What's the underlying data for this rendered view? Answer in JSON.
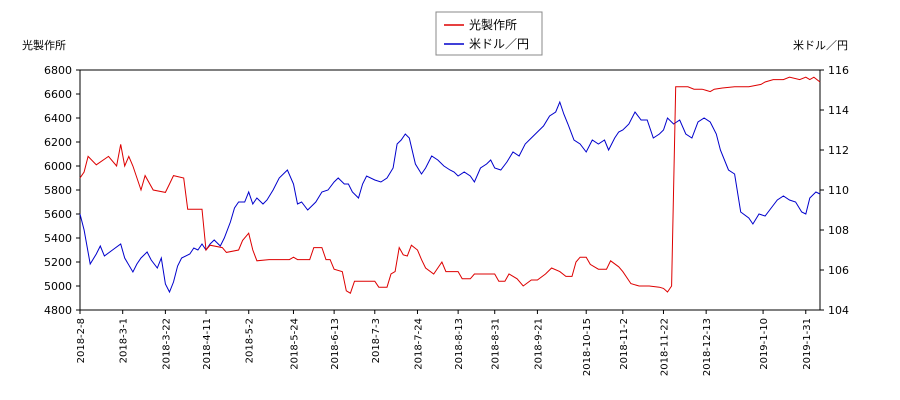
{
  "chart_data": {
    "type": "line",
    "legend": {
      "placement": "top-center",
      "entries": [
        {
          "label": "光製作所",
          "color": "#dd0000"
        },
        {
          "label": "米ドル／円",
          "color": "#0000cc"
        }
      ]
    },
    "y_left": {
      "label": "光製作所",
      "range": [
        4800,
        6800
      ],
      "ticks": [
        "4800",
        "5000",
        "5200",
        "5400",
        "5600",
        "5800",
        "6000",
        "6200",
        "6400",
        "6600",
        "6800"
      ]
    },
    "y_right": {
      "label": "米ドル／円",
      "range": [
        104,
        116
      ],
      "ticks": [
        "104",
        "106",
        "108",
        "110",
        "112",
        "114",
        "116"
      ]
    },
    "x_range": [
      "2018-02-08",
      "2019-02-07"
    ],
    "x_ticks": [
      "2018-2-8",
      "2018-3-1",
      "2018-3-22",
      "2018-4-11",
      "2018-5-2",
      "2018-5-24",
      "2018-6-13",
      "2018-7-3",
      "2018-7-24",
      "2018-8-13",
      "2018-8-31",
      "2018-9-21",
      "2018-10-15",
      "2018-11-2",
      "2018-11-22",
      "2018-12-13",
      "2019-1-10",
      "2019-1-31"
    ],
    "grid": false,
    "series": [
      {
        "name": "光製作所",
        "color": "#dd0000",
        "axis": "left",
        "points": [
          [
            "2018-02-08",
            5900
          ],
          [
            "2018-02-10",
            5950
          ],
          [
            "2018-02-12",
            6080
          ],
          [
            "2018-02-16",
            6010
          ],
          [
            "2018-02-22",
            6080
          ],
          [
            "2018-02-26",
            6000
          ],
          [
            "2018-02-28",
            6180
          ],
          [
            "2018-03-02",
            6000
          ],
          [
            "2018-03-04",
            6080
          ],
          [
            "2018-03-06",
            6000
          ],
          [
            "2018-03-10",
            5800
          ],
          [
            "2018-03-12",
            5920
          ],
          [
            "2018-03-16",
            5800
          ],
          [
            "2018-03-22",
            5780
          ],
          [
            "2018-03-24",
            5850
          ],
          [
            "2018-03-26",
            5920
          ],
          [
            "2018-03-31",
            5900
          ],
          [
            "2018-04-02",
            5640
          ],
          [
            "2018-04-09",
            5640
          ],
          [
            "2018-04-11",
            5300
          ],
          [
            "2018-04-13",
            5340
          ],
          [
            "2018-04-19",
            5320
          ],
          [
            "2018-04-21",
            5280
          ],
          [
            "2018-04-27",
            5300
          ],
          [
            "2018-04-29",
            5380
          ],
          [
            "2018-05-02",
            5440
          ],
          [
            "2018-05-04",
            5300
          ],
          [
            "2018-05-06",
            5210
          ],
          [
            "2018-05-12",
            5220
          ],
          [
            "2018-05-18",
            5220
          ],
          [
            "2018-05-22",
            5220
          ],
          [
            "2018-05-24",
            5240
          ],
          [
            "2018-05-26",
            5220
          ],
          [
            "2018-06-01",
            5220
          ],
          [
            "2018-06-03",
            5320
          ],
          [
            "2018-06-07",
            5320
          ],
          [
            "2018-06-09",
            5220
          ],
          [
            "2018-06-11",
            5220
          ],
          [
            "2018-06-13",
            5140
          ],
          [
            "2018-06-17",
            5120
          ],
          [
            "2018-06-19",
            4960
          ],
          [
            "2018-06-21",
            4940
          ],
          [
            "2018-06-23",
            5040
          ],
          [
            "2018-06-27",
            5040
          ],
          [
            "2018-07-03",
            5040
          ],
          [
            "2018-07-05",
            4990
          ],
          [
            "2018-07-09",
            4990
          ],
          [
            "2018-07-11",
            5100
          ],
          [
            "2018-07-13",
            5120
          ],
          [
            "2018-07-15",
            5320
          ],
          [
            "2018-07-17",
            5260
          ],
          [
            "2018-07-19",
            5250
          ],
          [
            "2018-07-21",
            5340
          ],
          [
            "2018-07-24",
            5300
          ],
          [
            "2018-07-26",
            5220
          ],
          [
            "2018-07-28",
            5150
          ],
          [
            "2018-08-01",
            5100
          ],
          [
            "2018-08-05",
            5200
          ],
          [
            "2018-08-07",
            5120
          ],
          [
            "2018-08-13",
            5120
          ],
          [
            "2018-08-15",
            5060
          ],
          [
            "2018-08-19",
            5060
          ],
          [
            "2018-08-21",
            5100
          ],
          [
            "2018-08-27",
            5100
          ],
          [
            "2018-08-31",
            5100
          ],
          [
            "2018-09-02",
            5040
          ],
          [
            "2018-09-05",
            5040
          ],
          [
            "2018-09-07",
            5100
          ],
          [
            "2018-09-11",
            5060
          ],
          [
            "2018-09-14",
            5000
          ],
          [
            "2018-09-18",
            5050
          ],
          [
            "2018-09-21",
            5050
          ],
          [
            "2018-09-25",
            5100
          ],
          [
            "2018-09-28",
            5150
          ],
          [
            "2018-10-02",
            5120
          ],
          [
            "2018-10-05",
            5080
          ],
          [
            "2018-10-08",
            5080
          ],
          [
            "2018-10-10",
            5200
          ],
          [
            "2018-10-12",
            5240
          ],
          [
            "2018-10-15",
            5240
          ],
          [
            "2018-10-17",
            5180
          ],
          [
            "2018-10-21",
            5140
          ],
          [
            "2018-10-25",
            5140
          ],
          [
            "2018-10-27",
            5210
          ],
          [
            "2018-10-31",
            5160
          ],
          [
            "2018-11-02",
            5120
          ],
          [
            "2018-11-06",
            5020
          ],
          [
            "2018-11-10",
            5000
          ],
          [
            "2018-11-15",
            5000
          ],
          [
            "2018-11-20",
            4990
          ],
          [
            "2018-11-22",
            4980
          ],
          [
            "2018-11-24",
            4950
          ],
          [
            "2018-11-26",
            5000
          ],
          [
            "2018-11-28",
            6660
          ],
          [
            "2018-12-04",
            6660
          ],
          [
            "2018-12-07",
            6640
          ],
          [
            "2018-12-11",
            6640
          ],
          [
            "2018-12-13",
            6630
          ],
          [
            "2018-12-15",
            6620
          ],
          [
            "2018-12-17",
            6640
          ],
          [
            "2018-12-21",
            6650
          ],
          [
            "2018-12-27",
            6660
          ],
          [
            "2019-01-03",
            6660
          ],
          [
            "2019-01-09",
            6680
          ],
          [
            "2019-01-11",
            6700
          ],
          [
            "2019-01-15",
            6720
          ],
          [
            "2019-01-20",
            6720
          ],
          [
            "2019-01-23",
            6740
          ],
          [
            "2019-01-28",
            6720
          ],
          [
            "2019-01-31",
            6740
          ],
          [
            "2019-02-02",
            6720
          ],
          [
            "2019-02-04",
            6740
          ],
          [
            "2019-02-07",
            6700
          ]
        ]
      },
      {
        "name": "米ドル／円",
        "color": "#0000cc",
        "axis": "right",
        "points": [
          [
            "2018-02-08",
            108.8
          ],
          [
            "2018-02-10",
            108.0
          ],
          [
            "2018-02-13",
            106.3
          ],
          [
            "2018-02-16",
            106.8
          ],
          [
            "2018-02-18",
            107.2
          ],
          [
            "2018-02-20",
            106.7
          ],
          [
            "2018-02-24",
            107.0
          ],
          [
            "2018-02-28",
            107.3
          ],
          [
            "2018-03-02",
            106.6
          ],
          [
            "2018-03-06",
            105.9
          ],
          [
            "2018-03-08",
            106.3
          ],
          [
            "2018-03-10",
            106.6
          ],
          [
            "2018-03-13",
            106.9
          ],
          [
            "2018-03-15",
            106.5
          ],
          [
            "2018-03-18",
            106.1
          ],
          [
            "2018-03-20",
            106.6
          ],
          [
            "2018-03-22",
            105.3
          ],
          [
            "2018-03-24",
            104.9
          ],
          [
            "2018-03-26",
            105.4
          ],
          [
            "2018-03-28",
            106.2
          ],
          [
            "2018-03-30",
            106.6
          ],
          [
            "2018-04-03",
            106.8
          ],
          [
            "2018-04-05",
            107.1
          ],
          [
            "2018-04-07",
            107.0
          ],
          [
            "2018-04-09",
            107.3
          ],
          [
            "2018-04-11",
            107.0
          ],
          [
            "2018-04-13",
            107.3
          ],
          [
            "2018-04-15",
            107.5
          ],
          [
            "2018-04-18",
            107.2
          ],
          [
            "2018-04-20",
            107.6
          ],
          [
            "2018-04-23",
            108.4
          ],
          [
            "2018-04-25",
            109.1
          ],
          [
            "2018-04-27",
            109.4
          ],
          [
            "2018-04-30",
            109.4
          ],
          [
            "2018-05-02",
            109.9
          ],
          [
            "2018-05-04",
            109.3
          ],
          [
            "2018-05-06",
            109.6
          ],
          [
            "2018-05-09",
            109.3
          ],
          [
            "2018-05-11",
            109.5
          ],
          [
            "2018-05-14",
            110.0
          ],
          [
            "2018-05-17",
            110.6
          ],
          [
            "2018-05-21",
            111.0
          ],
          [
            "2018-05-24",
            110.3
          ],
          [
            "2018-05-26",
            109.3
          ],
          [
            "2018-05-28",
            109.4
          ],
          [
            "2018-05-31",
            109.0
          ],
          [
            "2018-06-04",
            109.4
          ],
          [
            "2018-06-07",
            109.9
          ],
          [
            "2018-06-10",
            110.0
          ],
          [
            "2018-06-13",
            110.4
          ],
          [
            "2018-06-15",
            110.6
          ],
          [
            "2018-06-18",
            110.3
          ],
          [
            "2018-06-20",
            110.3
          ],
          [
            "2018-06-22",
            109.9
          ],
          [
            "2018-06-25",
            109.6
          ],
          [
            "2018-06-27",
            110.3
          ],
          [
            "2018-06-29",
            110.7
          ],
          [
            "2018-07-03",
            110.5
          ],
          [
            "2018-07-06",
            110.4
          ],
          [
            "2018-07-09",
            110.6
          ],
          [
            "2018-07-12",
            111.1
          ],
          [
            "2018-07-14",
            112.3
          ],
          [
            "2018-07-16",
            112.5
          ],
          [
            "2018-07-18",
            112.8
          ],
          [
            "2018-07-20",
            112.6
          ],
          [
            "2018-07-23",
            111.3
          ],
          [
            "2018-07-26",
            110.8
          ],
          [
            "2018-07-28",
            111.1
          ],
          [
            "2018-07-31",
            111.7
          ],
          [
            "2018-08-03",
            111.5
          ],
          [
            "2018-08-06",
            111.2
          ],
          [
            "2018-08-09",
            111.0
          ],
          [
            "2018-08-11",
            110.9
          ],
          [
            "2018-08-13",
            110.7
          ],
          [
            "2018-08-16",
            110.9
          ],
          [
            "2018-08-19",
            110.7
          ],
          [
            "2018-08-21",
            110.4
          ],
          [
            "2018-08-24",
            111.1
          ],
          [
            "2018-08-27",
            111.3
          ],
          [
            "2018-08-29",
            111.5
          ],
          [
            "2018-08-31",
            111.1
          ],
          [
            "2018-09-03",
            111.0
          ],
          [
            "2018-09-06",
            111.4
          ],
          [
            "2018-09-09",
            111.9
          ],
          [
            "2018-09-12",
            111.7
          ],
          [
            "2018-09-15",
            112.3
          ],
          [
            "2018-09-18",
            112.6
          ],
          [
            "2018-09-21",
            112.9
          ],
          [
            "2018-09-24",
            113.2
          ],
          [
            "2018-09-27",
            113.7
          ],
          [
            "2018-09-30",
            113.9
          ],
          [
            "2018-10-02",
            114.4
          ],
          [
            "2018-10-04",
            113.8
          ],
          [
            "2018-10-06",
            113.3
          ],
          [
            "2018-10-09",
            112.5
          ],
          [
            "2018-10-12",
            112.3
          ],
          [
            "2018-10-15",
            111.9
          ],
          [
            "2018-10-18",
            112.5
          ],
          [
            "2018-10-21",
            112.3
          ],
          [
            "2018-10-24",
            112.5
          ],
          [
            "2018-10-26",
            112.0
          ],
          [
            "2018-10-29",
            112.6
          ],
          [
            "2018-10-31",
            112.9
          ],
          [
            "2018-11-02",
            113.0
          ],
          [
            "2018-11-05",
            113.3
          ],
          [
            "2018-11-08",
            113.9
          ],
          [
            "2018-11-11",
            113.5
          ],
          [
            "2018-11-14",
            113.5
          ],
          [
            "2018-11-17",
            112.6
          ],
          [
            "2018-11-20",
            112.8
          ],
          [
            "2018-11-22",
            113.0
          ],
          [
            "2018-11-24",
            113.6
          ],
          [
            "2018-11-27",
            113.3
          ],
          [
            "2018-11-30",
            113.5
          ],
          [
            "2018-12-03",
            112.8
          ],
          [
            "2018-12-06",
            112.6
          ],
          [
            "2018-12-09",
            113.4
          ],
          [
            "2018-12-12",
            113.6
          ],
          [
            "2018-12-15",
            113.4
          ],
          [
            "2018-12-18",
            112.8
          ],
          [
            "2018-12-20",
            112.0
          ],
          [
            "2018-12-24",
            111.0
          ],
          [
            "2018-12-27",
            110.8
          ],
          [
            "2018-12-30",
            108.9
          ],
          [
            "2019-01-03",
            108.6
          ],
          [
            "2019-01-05",
            108.3
          ],
          [
            "2019-01-08",
            108.8
          ],
          [
            "2019-01-11",
            108.7
          ],
          [
            "2019-01-14",
            109.1
          ],
          [
            "2019-01-17",
            109.5
          ],
          [
            "2019-01-20",
            109.7
          ],
          [
            "2019-01-23",
            109.5
          ],
          [
            "2019-01-26",
            109.4
          ],
          [
            "2019-01-29",
            108.9
          ],
          [
            "2019-01-31",
            108.8
          ],
          [
            "2019-02-02",
            109.6
          ],
          [
            "2019-02-05",
            109.9
          ],
          [
            "2019-02-07",
            109.8
          ]
        ]
      }
    ]
  }
}
